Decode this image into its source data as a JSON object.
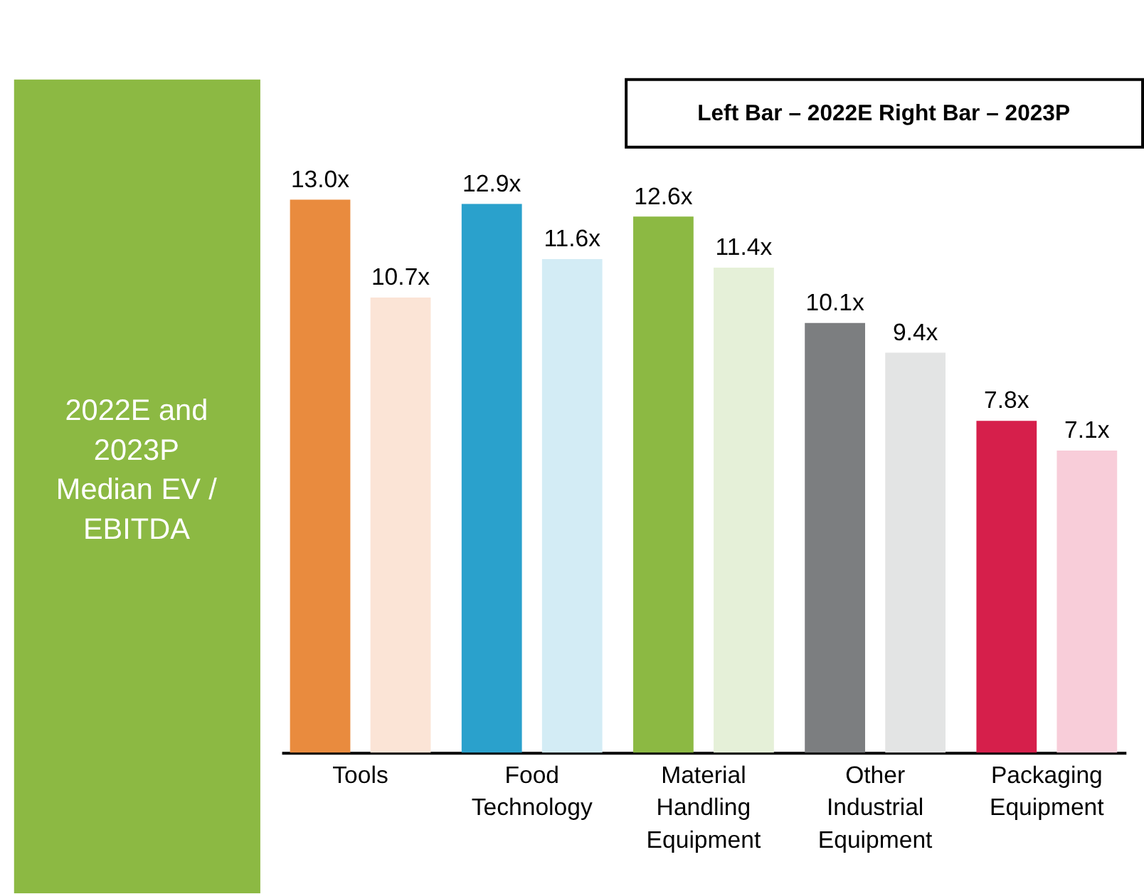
{
  "chart_data": {
    "type": "bar",
    "title": "2022E and 2023P Median EV / EBITDA",
    "categories": [
      "Tools",
      "Food Technology",
      "Material Handling Equipment",
      "Other Industrial Equipment",
      "Packaging Equipment"
    ],
    "series": [
      {
        "colors": [
          "#e98b3e",
          "#2aa1cc",
          "#8cb943",
          "#7c7e80",
          "#d61f4b"
        ],
        "values": [
          13.0,
          12.9,
          12.6,
          10.1,
          7.8
        ],
        "value_labels": [
          "13.0x",
          "12.9x",
          "12.6x",
          "10.1x",
          "7.8x"
        ]
      },
      {
        "colors": [
          "#fbe4d6",
          "#d3ecf5",
          "#e5f0d8",
          "#e3e4e4",
          "#f8cdd9"
        ],
        "values": [
          10.7,
          11.6,
          11.4,
          9.4,
          7.1
        ],
        "value_labels": [
          "10.7x",
          "11.6x",
          "11.4x",
          "9.4x",
          "7.1x"
        ]
      }
    ],
    "annotations": [
      "Left Bar – 2022E     Right Bar – 2023P"
    ]
  }
}
